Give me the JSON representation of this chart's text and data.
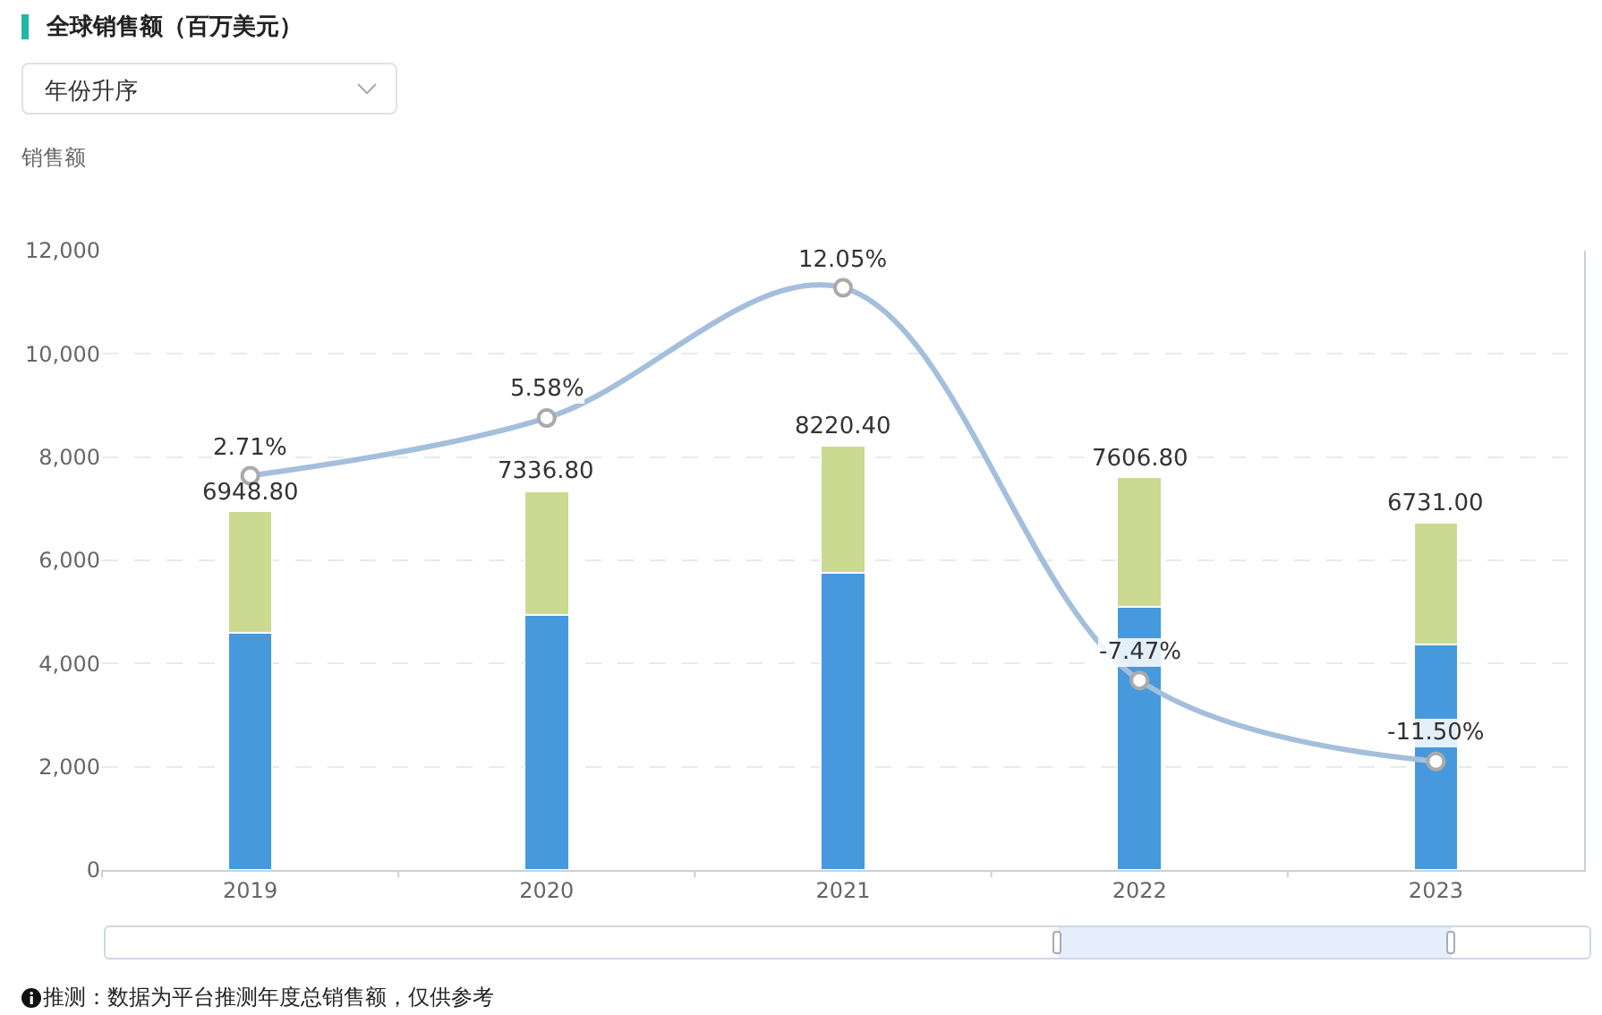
{
  "chart_data": {
    "type": "bar",
    "title": "全球销售额（百万美元）",
    "ylabel": "销售额",
    "categories": [
      "2019",
      "2020",
      "2021",
      "2022",
      "2023"
    ],
    "stacked": true,
    "series": [
      {
        "color": "#4699dd",
        "values": [
          4600,
          4950,
          5760,
          5100,
          4370
        ]
      },
      {
        "color": "#cbd991",
        "values": [
          2348.8,
          2386.8,
          2460.4,
          2506.8,
          2361
        ]
      },
      {
        "type": "line",
        "axis": "y2",
        "color": "#a3bfdb",
        "values": [
          2.71,
          5.58,
          12.05,
          -7.47,
          -11.5
        ],
        "value_labels": [
          "2.71%",
          "5.58%",
          "12.05%",
          "-7.47%",
          "-11.50%"
        ]
      }
    ],
    "totals": [
      "6948.80",
      "7336.80",
      "8220.40",
      "7606.80",
      "6731.00"
    ],
    "ylim": [
      0,
      12000
    ],
    "yticks": [
      0,
      {
        "value": 2000,
        "label": "2,000"
      },
      {
        "value": 4000,
        "label": "4,000"
      },
      {
        "value": 6000,
        "label": "6,000"
      },
      {
        "value": 8000,
        "label": "8,000"
      },
      {
        "value": 10000,
        "label": "10,000"
      },
      {
        "value": 12000,
        "label": "12,000"
      }
    ],
    "y2lim": [
      -16.9,
      13.9
    ],
    "grid": "y",
    "marker": "circle",
    "annotations": [
      "年份升序",
      "推测：数据为平台推测年度总销售额，仅供参考"
    ]
  }
}
